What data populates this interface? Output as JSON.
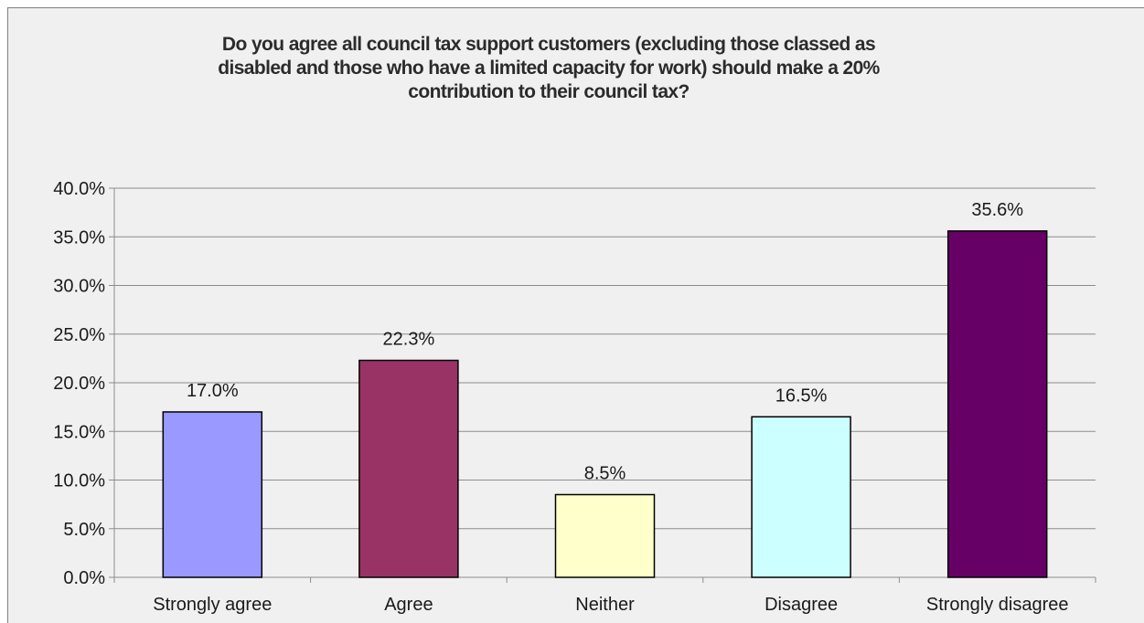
{
  "chart_data": {
    "type": "bar",
    "title": "Do you agree all council tax support customers (excluding those classed as disabled and those who have a limited capacity for work) should make a 20% contribution to their council tax?",
    "title_lines": [
      "Do you agree all council tax support customers (excluding those classed as",
      "disabled and those who have a limited capacity for work) should make a 20%",
      "contribution to their council tax?"
    ],
    "categories": [
      "Strongly agree",
      "Agree",
      "Neither",
      "Disagree",
      "Strongly disagree"
    ],
    "values": [
      17.0,
      22.3,
      8.5,
      16.5,
      35.6
    ],
    "data_labels": [
      "17.0%",
      "22.3%",
      "8.5%",
      "16.5%",
      "35.6%"
    ],
    "colors": [
      "#9999ff",
      "#993366",
      "#ffffcc",
      "#ccffff",
      "#660066"
    ],
    "ylim": [
      0,
      40
    ],
    "yticks": [
      0,
      5,
      10,
      15,
      20,
      25,
      30,
      35,
      40
    ],
    "ytick_labels": [
      "0.0%",
      "5.0%",
      "10.0%",
      "15.0%",
      "20.0%",
      "25.0%",
      "30.0%",
      "35.0%",
      "40.0%"
    ],
    "xlabel": "",
    "ylabel": "",
    "grid": true,
    "legend": "none"
  }
}
